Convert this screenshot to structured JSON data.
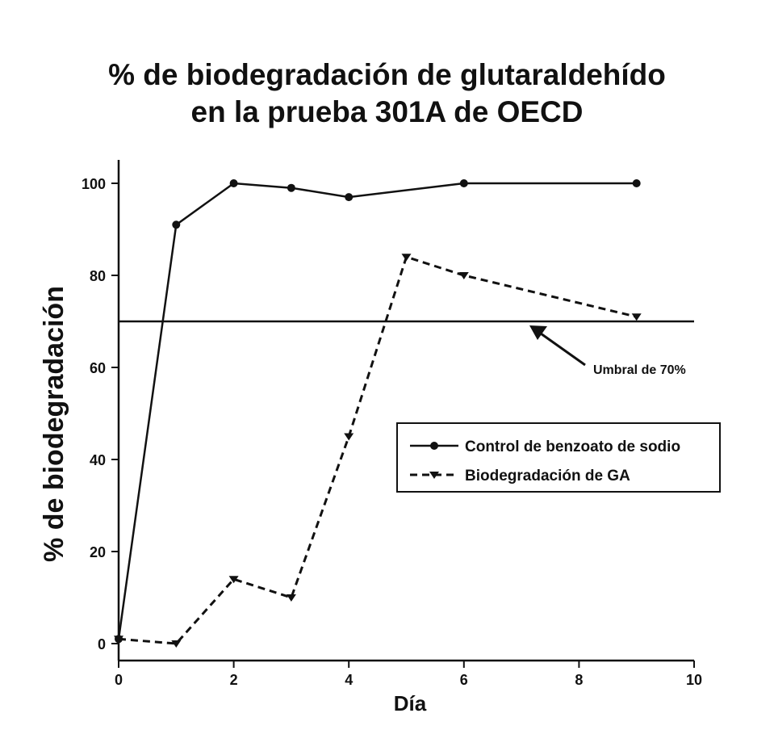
{
  "chart_data": {
    "type": "line",
    "title_lines": [
      "% de biodegradación de glutaraldehído",
      "en la prueba 301A de OECD"
    ],
    "xlabel": "Día",
    "ylabel": "% de biodegradación",
    "xlim": [
      0,
      10
    ],
    "ylim": [
      0,
      105
    ],
    "xticks": [
      0,
      2,
      4,
      6,
      8,
      10
    ],
    "yticks": [
      0,
      20,
      40,
      60,
      80,
      100
    ],
    "grid": false,
    "legend_position": "center-right",
    "threshold": {
      "value": 70,
      "label": "Umbral de 70%"
    },
    "series": [
      {
        "name": "Control de benzoato de sodio",
        "style": "solid",
        "marker": "circle",
        "x": [
          0,
          1,
          2,
          3,
          4,
          6,
          9
        ],
        "y": [
          1,
          91,
          100,
          99,
          97,
          100,
          100
        ]
      },
      {
        "name": "Biodegradación de GA",
        "style": "dashed",
        "marker": "triangle-down",
        "x": [
          0,
          1,
          2,
          3,
          4,
          5,
          6,
          9
        ],
        "y": [
          1,
          0,
          14,
          10,
          45,
          84,
          80,
          71
        ]
      }
    ]
  }
}
